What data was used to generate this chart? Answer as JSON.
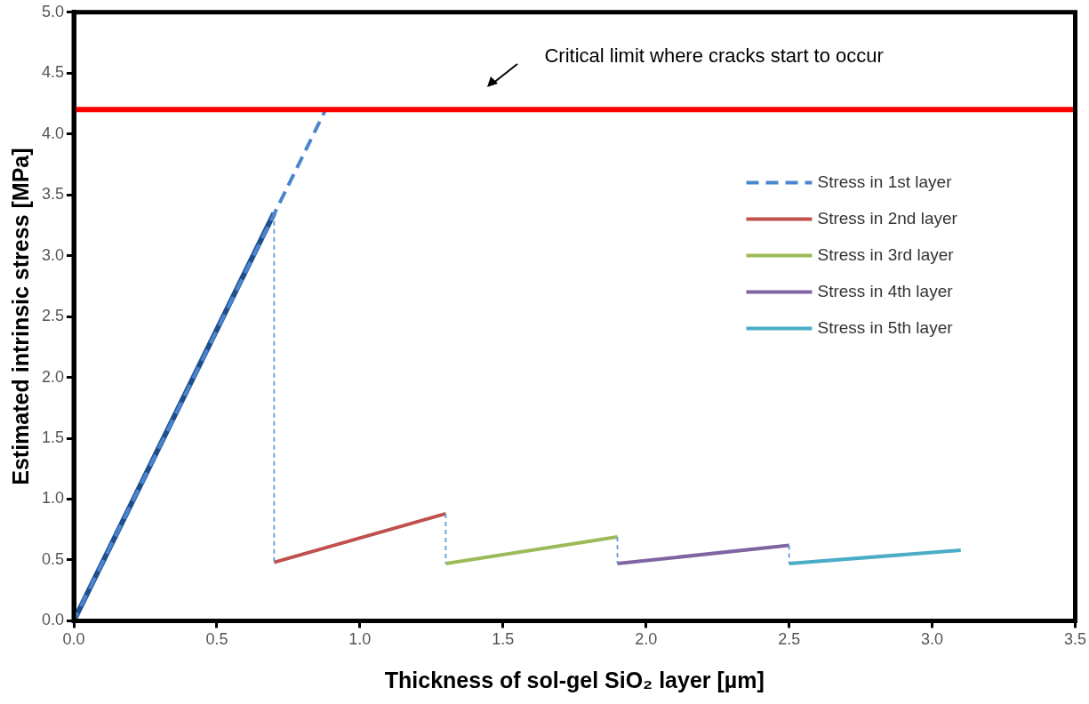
{
  "chart_data": {
    "type": "line",
    "xlabel": "Thickness of sol-gel SiO₂ layer [µm]",
    "ylabel": "Estimated intrinsic stress [MPa]",
    "xlim": [
      0,
      3.5
    ],
    "ylim": [
      0,
      5
    ],
    "xticks": [
      {
        "value": 0,
        "label": "0.0"
      },
      {
        "value": 0.5,
        "label": "0.5"
      },
      {
        "value": 1,
        "label": "1.0"
      },
      {
        "value": 1.5,
        "label": "1.5"
      },
      {
        "value": 2,
        "label": "2.0"
      },
      {
        "value": 2.5,
        "label": "2.5"
      },
      {
        "value": 3,
        "label": "3.0"
      },
      {
        "value": 3.5,
        "label": "3.5"
      }
    ],
    "yticks": [
      {
        "value": 0,
        "label": "0.0"
      },
      {
        "value": 0.5,
        "label": "0.5"
      },
      {
        "value": 1,
        "label": "1.0"
      },
      {
        "value": 1.5,
        "label": "1.5"
      },
      {
        "value": 2,
        "label": "2.0"
      },
      {
        "value": 2.5,
        "label": "2.5"
      },
      {
        "value": 3,
        "label": "3.0"
      },
      {
        "value": 3.5,
        "label": "3.5"
      },
      {
        "value": 4,
        "label": "4.0"
      },
      {
        "value": 4.5,
        "label": "4.5"
      },
      {
        "value": 5,
        "label": "5.0"
      }
    ],
    "grid": false,
    "legend": "right",
    "marker": "none",
    "series": [
      {
        "name": "Stress in 1st layer",
        "color": "#4a86d0",
        "x": [
          0,
          0.88
        ],
        "values": [
          0,
          4.2
        ],
        "line_style": "dashed"
      },
      {
        "color": "#1f4e8c",
        "x": [
          0,
          0.7
        ],
        "values": [
          0,
          3.35
        ],
        "line_style": "solid"
      },
      {
        "color": "#5b9bd5",
        "x": [
          0.7,
          0.7
        ],
        "values": [
          3.35,
          0.48
        ],
        "line_style": "dotted"
      },
      {
        "color": "#5b9bd5",
        "x": [
          1.3,
          1.3
        ],
        "values": [
          0.88,
          0.47
        ],
        "line_style": "dotted"
      },
      {
        "color": "#5b9bd5",
        "x": [
          1.9,
          1.9
        ],
        "values": [
          0.69,
          0.47
        ],
        "line_style": "dotted"
      },
      {
        "color": "#5b9bd5",
        "x": [
          2.5,
          2.5
        ],
        "values": [
          0.62,
          0.47
        ],
        "line_style": "dotted"
      },
      {
        "name": "Stress in 2nd layer",
        "color": "#c0504d",
        "x": [
          0.7,
          1.3
        ],
        "values": [
          0.48,
          0.88
        ],
        "line_style": "solid"
      },
      {
        "name": "Stress in 3rd layer",
        "color": "#9bbb59",
        "x": [
          1.3,
          1.9
        ],
        "values": [
          0.47,
          0.69
        ],
        "line_style": "solid"
      },
      {
        "name": "Stress in 4th layer",
        "color": "#8064a2",
        "x": [
          1.9,
          2.5
        ],
        "values": [
          0.47,
          0.62
        ],
        "line_style": "solid"
      },
      {
        "name": "Stress in 5th layer",
        "color": "#4bacc6",
        "x": [
          2.5,
          3.1
        ],
        "values": [
          0.47,
          0.58
        ],
        "line_style": "solid"
      }
    ],
    "ref_lines": [
      {
        "axis": "y",
        "value": 4.2,
        "label": "Critical limit where cracks start to occur",
        "color": "#ff0000"
      }
    ]
  }
}
